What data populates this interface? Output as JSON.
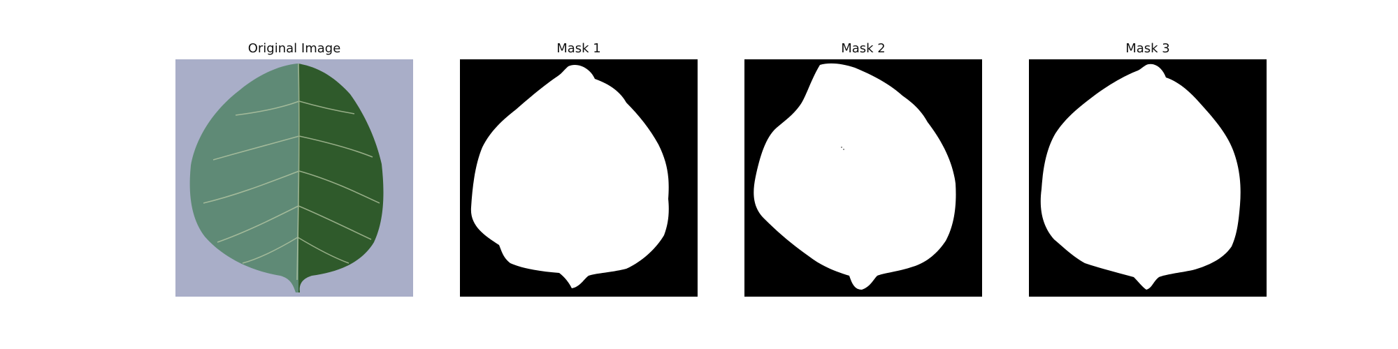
{
  "panels": [
    {
      "title": "Original Image"
    },
    {
      "title": "Mask 1"
    },
    {
      "title": "Mask 2"
    },
    {
      "title": "Mask 3"
    }
  ],
  "colors": {
    "background": "#ffffff",
    "mask_background": "#000000",
    "mask_foreground": "#ffffff",
    "photo_backdrop": "#a9aec8",
    "leaf_light_half": "#5f8a76",
    "leaf_dark_half": "#2f5a2b",
    "leaf_vein": "#b9c9a6"
  }
}
